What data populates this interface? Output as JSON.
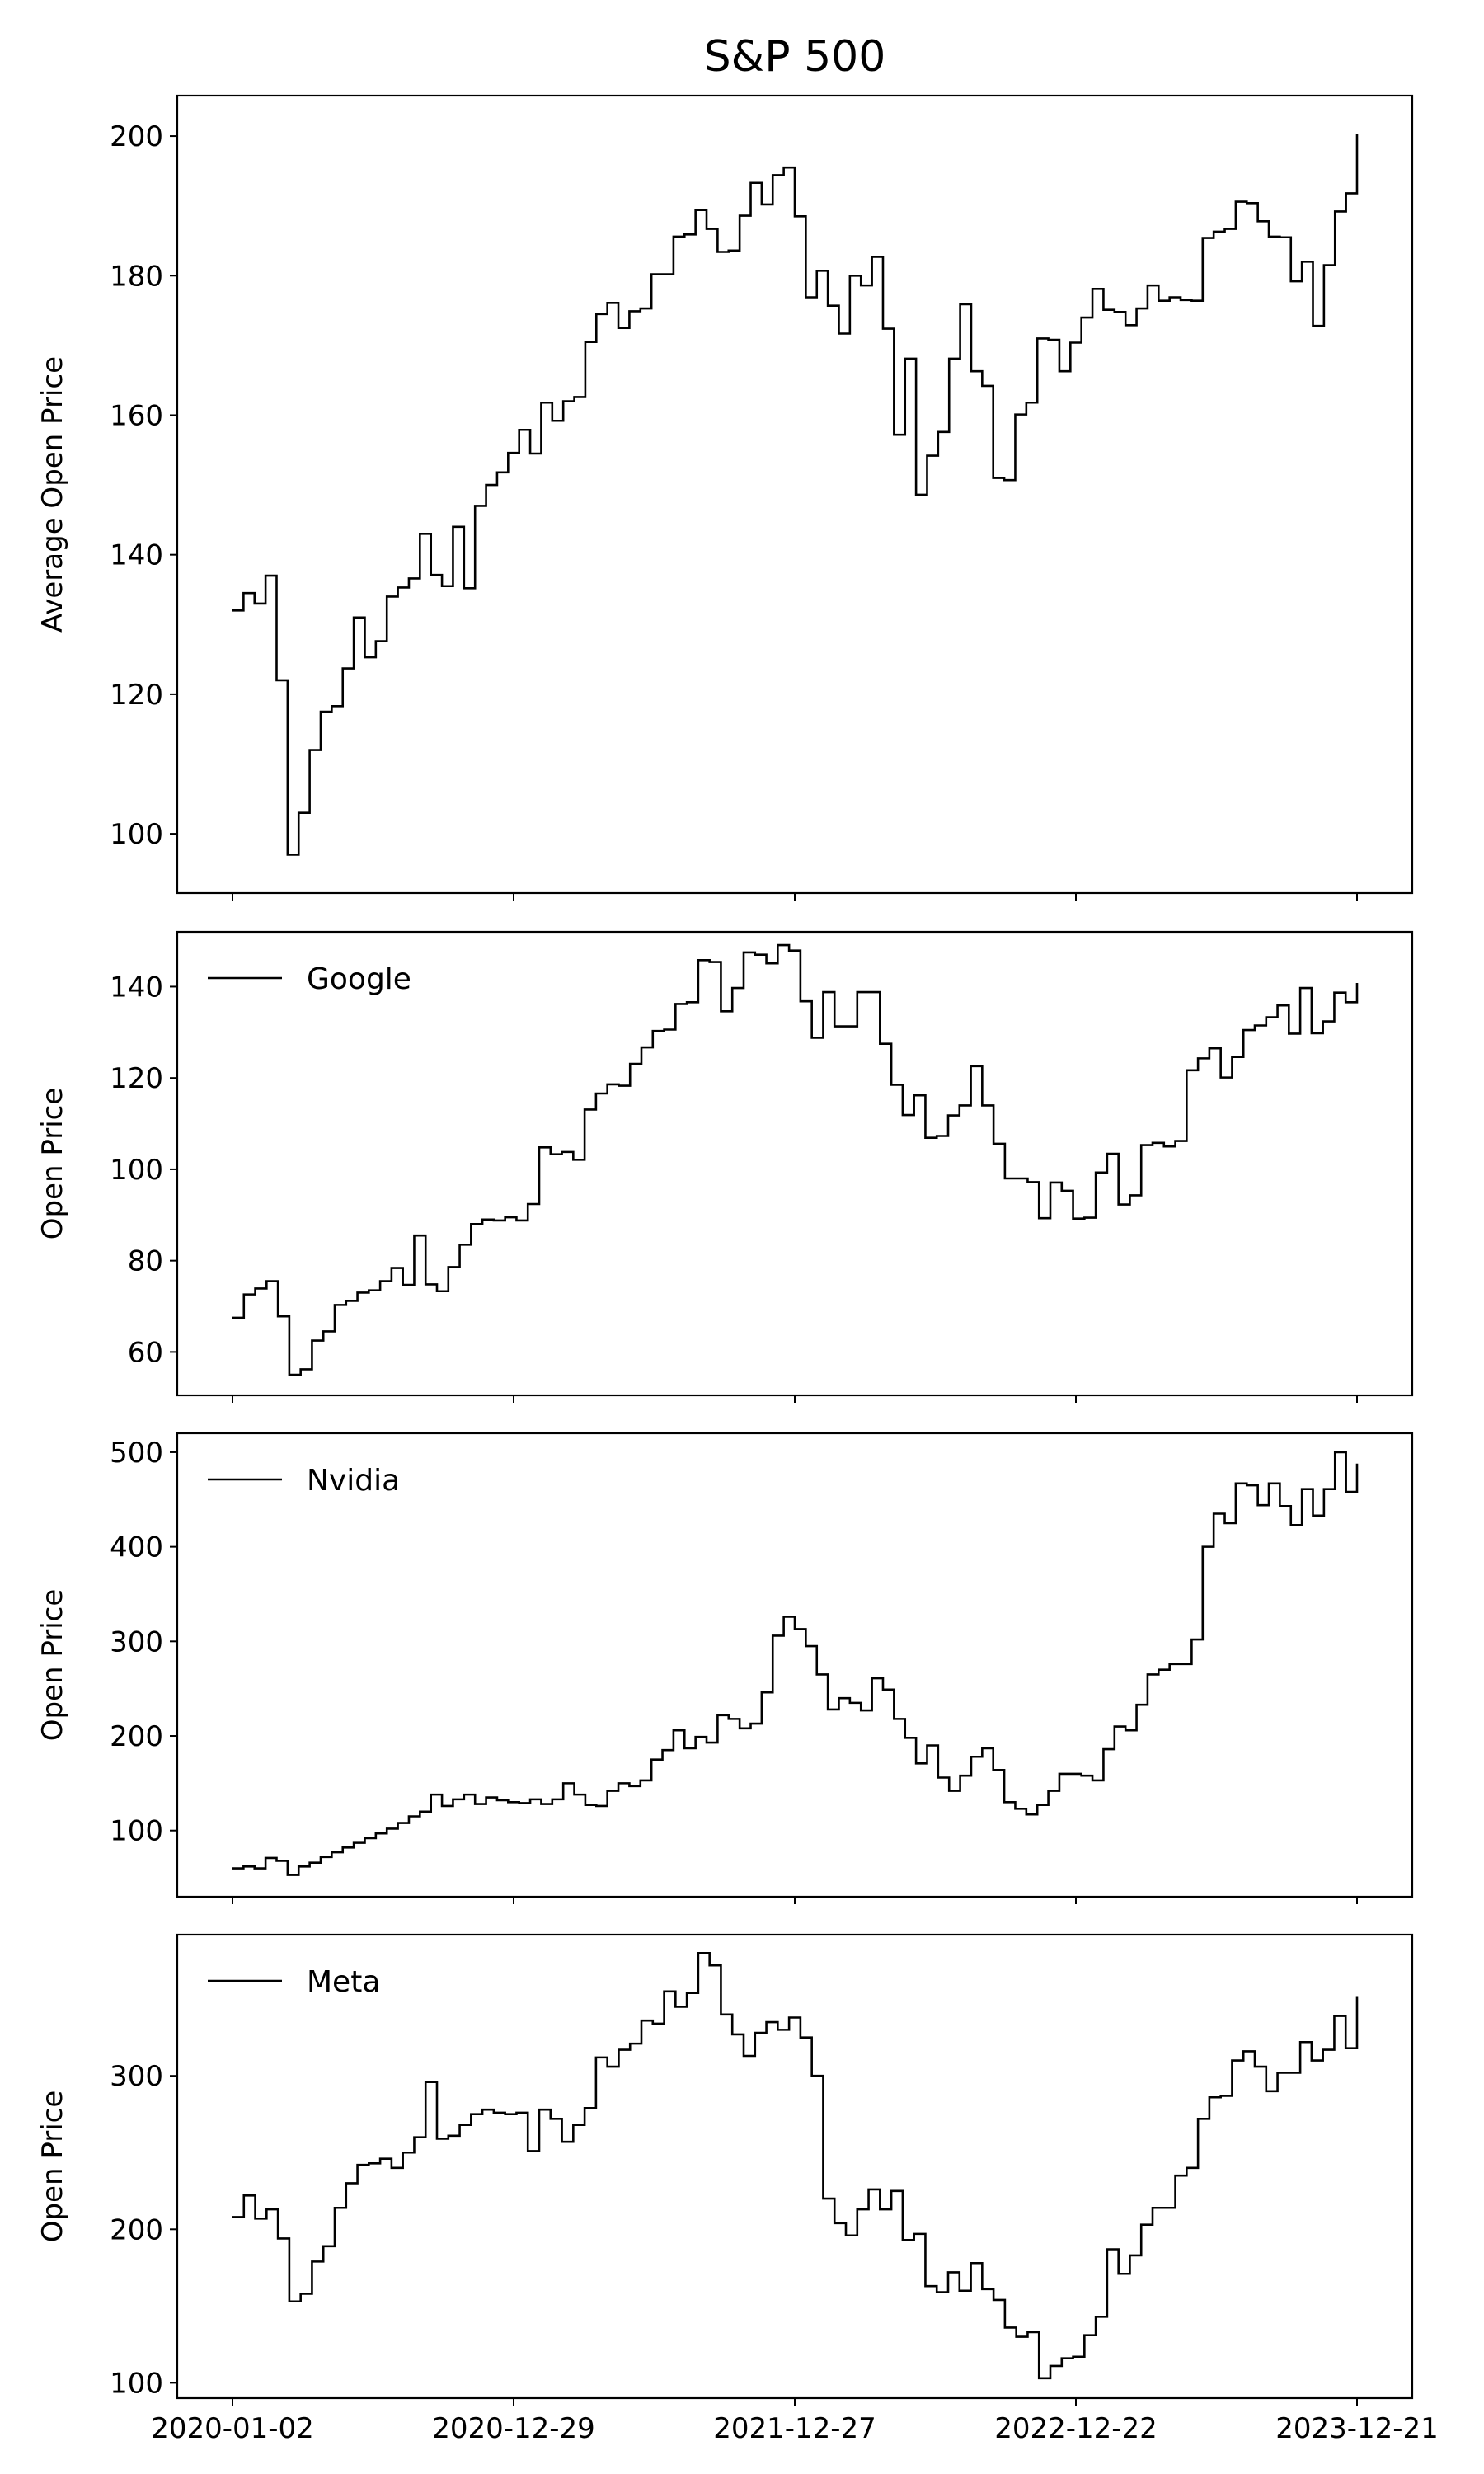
{
  "chart_data": [
    {
      "type": "line",
      "step": true,
      "title": "S&P 500",
      "ylabel": "Average Open Price",
      "ylim": [
        91.5,
        205.8
      ],
      "yticks": [
        100,
        120,
        140,
        160,
        180,
        200
      ],
      "legend": null,
      "series": [
        {
          "values": [
            132,
            134.5,
            133,
            137,
            122,
            97,
            103,
            112,
            117.5,
            118.3,
            123.7,
            131,
            125.3,
            127.6,
            134,
            135.3,
            136.6,
            143,
            137.1,
            135.5,
            144,
            135.2,
            147,
            150,
            151.8,
            154.6,
            157.9,
            154.5,
            161.8,
            159.2,
            162,
            162.6,
            170.5,
            174.5,
            176.1,
            172.5,
            174.9,
            175.3,
            180.2,
            180.2,
            185.6,
            185.9,
            189.4,
            186.7,
            183.4,
            183.6,
            188.6,
            193.3,
            190.2,
            194.4,
            195.5,
            188.5,
            176.9,
            180.7,
            175.7,
            171.7,
            180,
            178.6,
            182.7,
            172.4,
            157.2,
            168.1,
            148.6,
            154.2,
            157.6,
            168.1,
            175.9,
            166.3,
            164.2,
            151,
            150.7,
            160.1,
            161.8,
            171,
            170.8,
            166.3,
            170.4,
            174,
            178.1,
            175.1,
            174.8,
            172.9,
            175.3,
            178.6,
            176.4,
            176.9,
            176.5,
            176.4,
            185.4,
            186.3,
            186.7,
            190.6,
            190.4,
            187.8,
            185.6,
            185.5,
            179.2,
            182,
            172.8,
            181.5,
            189.2,
            191.8,
            200.3
          ]
        }
      ]
    },
    {
      "type": "line",
      "step": true,
      "ylabel": "Open Price",
      "ylim": [
        50.5,
        152
      ],
      "yticks": [
        60,
        80,
        100,
        120,
        140
      ],
      "legend": "top-left",
      "series": [
        {
          "name": "Google",
          "values": [
            67.5,
            72.6,
            73.9,
            75.5,
            67.8,
            55,
            56.2,
            62.5,
            64.5,
            70.3,
            71.2,
            73,
            73.5,
            75.5,
            78.4,
            74.7,
            85.5,
            74.8,
            73.3,
            78.6,
            83.5,
            88,
            89,
            88.8,
            89.5,
            88.8,
            92.4,
            104.8,
            103.3,
            103.8,
            102.1,
            113.1,
            116.6,
            118.6,
            118.3,
            123.1,
            126.7,
            130.3,
            130.6,
            136.2,
            136.6,
            145.8,
            145.4,
            134.6,
            139.7,
            147.5,
            147,
            145.1,
            149.1,
            147.9,
            136.8,
            128.8,
            138.8,
            131.3,
            131.3,
            138.8,
            138.8,
            127.5,
            118.5,
            111.9,
            116.2,
            106.9,
            107.3,
            111.8,
            114,
            122.6,
            114,
            105.6,
            98,
            98,
            97.2,
            89.3,
            97.1,
            95.3,
            89.2,
            89.4,
            99.3,
            103.4,
            92.3,
            94.3,
            105.3,
            105.8,
            105,
            106.2,
            121.7,
            124.3,
            126.5,
            120.1,
            124.6,
            130.5,
            131.5,
            133.3,
            135.9,
            129.7,
            139.7,
            129.8,
            132.4,
            138.7,
            136.6,
            140.8
          ]
        }
      ]
    },
    {
      "type": "line",
      "step": true,
      "ylabel": "Open Price",
      "ylim": [
        30,
        520
      ],
      "yticks": [
        100,
        200,
        300,
        400,
        500
      ],
      "legend": "top-left",
      "series": [
        {
          "name": "Nvidia",
          "values": [
            60,
            62,
            60,
            71,
            68,
            53,
            62,
            66,
            72,
            77,
            82,
            87,
            92,
            97,
            102,
            108,
            115,
            120,
            138,
            126,
            133,
            138,
            128,
            135,
            132,
            130,
            129,
            133,
            128,
            133,
            150,
            138,
            127,
            126,
            142,
            150,
            147,
            153,
            175,
            185,
            206,
            187,
            199,
            193,
            222,
            218,
            208,
            213,
            246,
            306,
            326,
            313,
            295,
            265,
            228,
            240,
            235,
            227,
            261,
            249,
            218,
            198,
            171,
            190,
            156,
            142,
            158,
            178,
            187,
            164,
            130,
            123,
            117,
            127,
            142,
            160,
            160,
            158,
            153,
            186,
            210,
            206,
            233,
            265,
            270,
            276,
            276,
            302,
            400,
            435,
            425,
            467,
            465,
            444,
            467,
            443,
            423,
            461,
            433,
            461,
            500,
            458,
            488
          ]
        }
      ]
    },
    {
      "type": "line",
      "step": true,
      "ylabel": "Open Price",
      "ylim": [
        90,
        392
      ],
      "yticks": [
        100,
        200,
        300
      ],
      "legend": "top-left",
      "series": [
        {
          "name": "Meta",
          "values": [
            208,
            222,
            207,
            213,
            194,
            153,
            158,
            179,
            189,
            214,
            230,
            242,
            243,
            246,
            240,
            250,
            260,
            296,
            259,
            261,
            268,
            275,
            278,
            276,
            275,
            276,
            251,
            278,
            272,
            257,
            268,
            279,
            312,
            306,
            317,
            321,
            336,
            334,
            355,
            345,
            354,
            380,
            372,
            340,
            327,
            313,
            328,
            335,
            330,
            338,
            325,
            300,
            220,
            204,
            196,
            213,
            226,
            213,
            225,
            193,
            197,
            163,
            159,
            172,
            160,
            178,
            161,
            154,
            136,
            130,
            133,
            103,
            111,
            116,
            117,
            131,
            143,
            187,
            171,
            183,
            203,
            214,
            214,
            235,
            240,
            272,
            286,
            287,
            310,
            316,
            306,
            290,
            302,
            302,
            322,
            310,
            317,
            339,
            318,
            352
          ]
        }
      ]
    }
  ],
  "x_axis": {
    "tick_labels": [
      "2020-01-02",
      "2020-12-29",
      "2021-12-27",
      "2022-12-22",
      "2023-12-21"
    ]
  }
}
